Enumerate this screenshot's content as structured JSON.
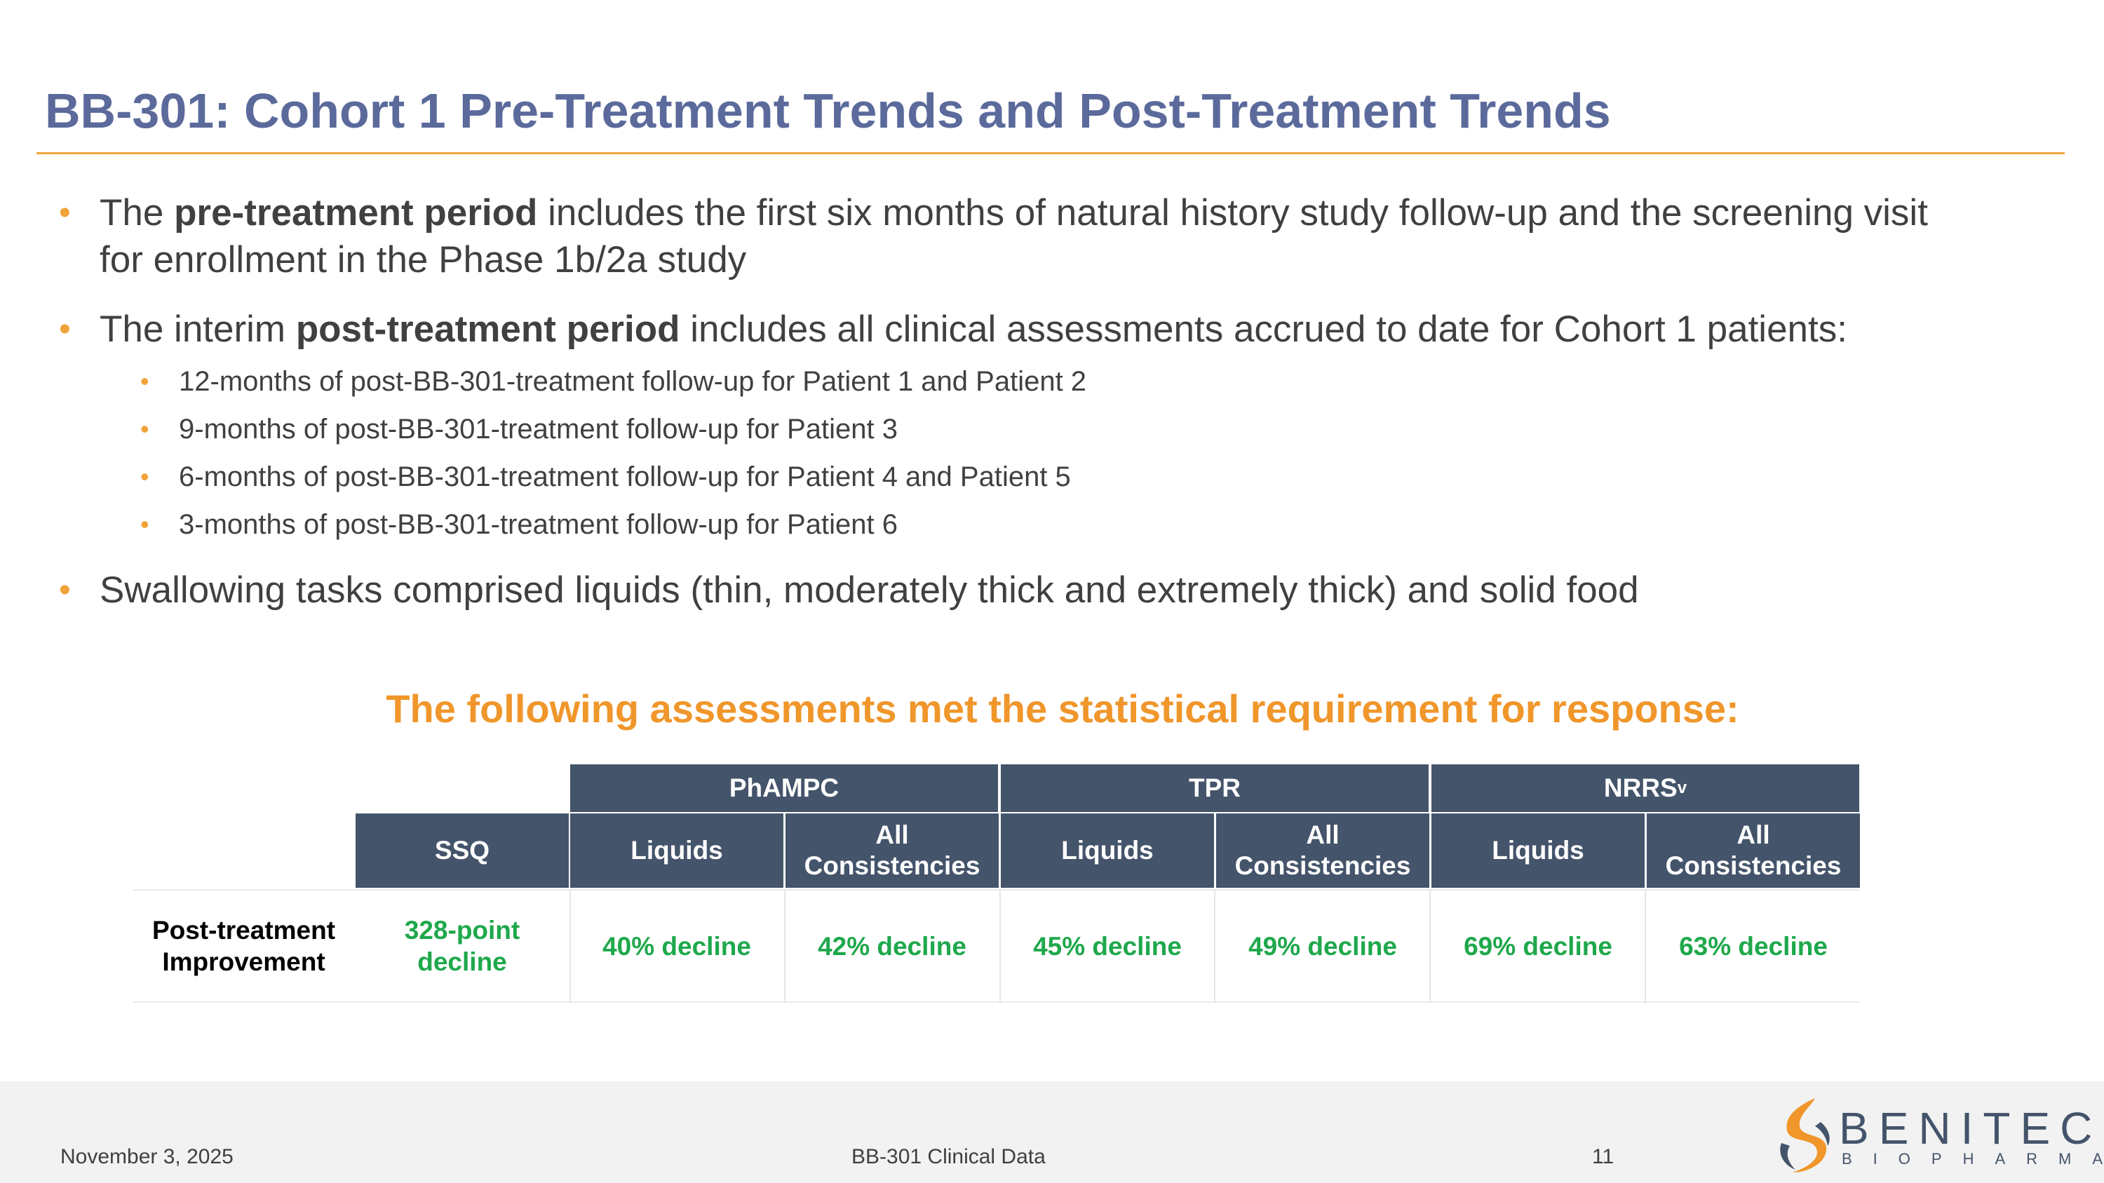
{
  "slide": {
    "title": "BB-301: Cohort 1 Pre-Treatment Trends and Post-Treatment Trends",
    "bullets": {
      "pre": {
        "lead": "The ",
        "bold": "pre-treatment period",
        "rest_line1": " includes the first six months of natural history study follow-up and the screening visit",
        "rest_line2": "for enrollment in the Phase 1b/2a study"
      },
      "post": {
        "lead": "The interim ",
        "bold": "post-treatment period",
        "rest": " includes all clinical assessments accrued to date for Cohort 1 patients:"
      },
      "sub": [
        "12-months of post-BB-301-treatment follow-up for Patient 1 and Patient 2",
        "9-months of post-BB-301-treatment follow-up for Patient 3",
        "6-months of post-BB-301-treatment follow-up for Patient 4 and Patient 5",
        "3-months of post-BB-301-treatment follow-up for Patient 6"
      ],
      "swallowing": "Swallowing tasks comprised liquids (thin, moderately thick and extremely thick) and solid food"
    },
    "subheading": "The following assessments met the statistical requirement for response:"
  },
  "table": {
    "groups": {
      "phampc": "PhAMPC",
      "tpr": "TPR",
      "nrrs": "NRRS",
      "nrrs_sub": "v"
    },
    "columns": {
      "ssq": "SSQ",
      "phampc_liquids": "Liquids",
      "phampc_all_1": "All",
      "phampc_all_2": "Consistencies",
      "tpr_liquids": "Liquids",
      "tpr_all_1": "All",
      "tpr_all_2": "Consistencies",
      "nrrs_liquids": "Liquids",
      "nrrs_all_1": "All",
      "nrrs_all_2": "Consistencies"
    },
    "row": {
      "label_1": "Post-treatment",
      "label_2": "Improvement",
      "ssq_1": "328-point",
      "ssq_2": "decline",
      "phampc_liquids": "40% decline",
      "phampc_all": "42% decline",
      "tpr_liquids": "45% decline",
      "tpr_all": "49% decline",
      "nrrs_liquids": "69% decline",
      "nrrs_all": "63% decline"
    }
  },
  "footer": {
    "date": "November 3, 2025",
    "center": "BB-301 Clinical Data",
    "page": "11",
    "logo_word": "BENITEC",
    "logo_sub": "BIOPHARMA"
  },
  "colors": {
    "title": "#5b6a9b",
    "accent": "#f0a33a",
    "header_fill": "#44546a",
    "value_green": "#1ea84b"
  }
}
